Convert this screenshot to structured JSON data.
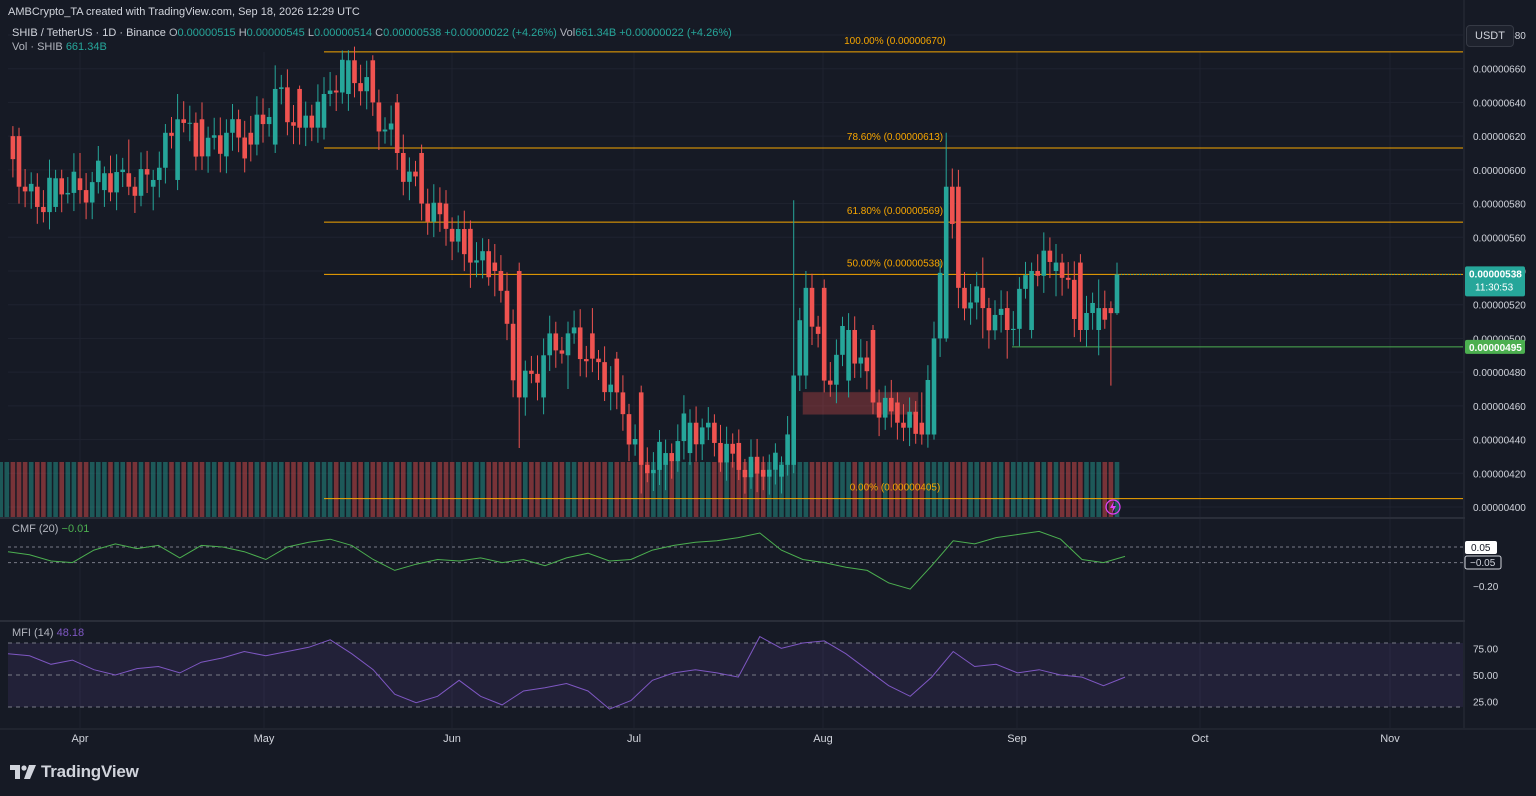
{
  "header": {
    "attribution": "AMBCrypto_TA created with TradingView.com, Sep 18, 2026 12:29 UTC",
    "symbol": "SHIB / TetherUS · 1D · Binance",
    "o_label": "O",
    "o_value": "0.00000515",
    "h_label": "H",
    "h_value": "0.00000545",
    "l_label": "L",
    "l_value": "0.00000514",
    "c_label": "C",
    "c_value": "0.00000538",
    "change": "+0.00000022 (+4.26%)",
    "vol_label": "Vol",
    "vol_value": "661.34B",
    "change2": "+0.00000022 (+4.26%)",
    "vol_shib_label": "Vol · SHIB",
    "vol_shib_value": "661.34B"
  },
  "currency_button": "USDT",
  "colors": {
    "background": "#161a25",
    "up": "#26a69a",
    "down": "#ef5350",
    "fib": "#f7a600",
    "cmf": "#4caf50",
    "mfi": "#7e57c2",
    "support": "#4caf50"
  },
  "price_axis": {
    "ticks": [
      "0.00000680",
      "0.00000660",
      "0.00000640",
      "0.00000620",
      "0.00000600",
      "0.00000580",
      "0.00000560",
      "0.00000540",
      "0.00000520",
      "0.00000500",
      "0.00000480",
      "0.00000460",
      "0.00000440",
      "0.00000420",
      "0.00000400"
    ],
    "current_price": "0.00000538",
    "countdown": "11:30:53",
    "support_label": "0.00000495"
  },
  "fib_levels": [
    {
      "label": "100.00% (0.00000670)",
      "value": 6.7e-06
    },
    {
      "label": "78.60% (0.00000613)",
      "value": 6.13e-06
    },
    {
      "label": "61.80% (0.00000569)",
      "value": 5.69e-06
    },
    {
      "label": "50.00% (0.00000538)",
      "value": 5.38e-06
    },
    {
      "label": "0.00% (0.00000405)",
      "value": 4.05e-06
    }
  ],
  "time_axis": [
    "Apr",
    "May",
    "Jun",
    "Jul",
    "Aug",
    "Sep",
    "Oct",
    "Nov"
  ],
  "cmf": {
    "label": "CMF (20)",
    "value": "−0.01",
    "ticks": [
      "0.05",
      "−0.05",
      "−0.20"
    ]
  },
  "mfi": {
    "label": "MFI (14)",
    "value": "48.18",
    "ticks": [
      "75.00",
      "50.00",
      "25.00"
    ]
  },
  "logo_text": "TradingView",
  "chart_data": {
    "type": "candlestick",
    "title": "SHIB / TetherUS · 1D · Binance",
    "x_range": [
      "Mar 18",
      "Sep 18"
    ],
    "y_range": [
      3.9e-06,
      6.88e-06
    ],
    "note_unit": "values in USDT",
    "series": [
      {
        "name": "SHIB / TetherUS",
        "points": [
          {
            "date": "Mar 18",
            "open": 6e-06,
            "high": 6.1e-06,
            "low": 5.68e-06,
            "close": 5.75e-06
          },
          {
            "date": "Mar 20",
            "open": 5.75e-06,
            "high": 6.28e-06,
            "low": 5.7e-06,
            "close": 6.2e-06
          },
          {
            "date": "Mar 22",
            "open": 6.2e-06,
            "high": 6.25e-06,
            "low": 5.8e-06,
            "close": 5.9e-06
          },
          {
            "date": "Mar 25",
            "open": 5.9e-06,
            "high": 5.98e-06,
            "low": 5.68e-06,
            "close": 5.78e-06
          },
          {
            "date": "Mar 28",
            "open": 5.78e-06,
            "high": 6e-06,
            "low": 5.75e-06,
            "close": 5.95e-06
          },
          {
            "date": "Apr 01",
            "open": 5.95e-06,
            "high": 6.1e-06,
            "low": 5.8e-06,
            "close": 5.88e-06
          },
          {
            "date": "Apr 05",
            "open": 5.88e-06,
            "high": 6.02e-06,
            "low": 5.78e-06,
            "close": 5.98e-06
          },
          {
            "date": "Apr 09",
            "open": 5.98e-06,
            "high": 6.18e-06,
            "low": 5.85e-06,
            "close": 5.9e-06
          },
          {
            "date": "Apr 13",
            "open": 5.9e-06,
            "high": 6e-06,
            "low": 5.76e-06,
            "close": 5.94e-06
          },
          {
            "date": "Apr 17",
            "open": 5.94e-06,
            "high": 6.45e-06,
            "low": 5.88e-06,
            "close": 6.3e-06
          },
          {
            "date": "Apr 21",
            "open": 6.3e-06,
            "high": 6.4e-06,
            "low": 6e-06,
            "close": 6.08e-06
          },
          {
            "date": "Apr 25",
            "open": 6.08e-06,
            "high": 6.3e-06,
            "low": 5.98e-06,
            "close": 6.22e-06
          },
          {
            "date": "Apr 29",
            "open": 6.22e-06,
            "high": 6.32e-06,
            "low": 6.05e-06,
            "close": 6.15e-06
          },
          {
            "date": "May 03",
            "open": 6.15e-06,
            "high": 6.62e-06,
            "low": 6.1e-06,
            "close": 6.48e-06
          },
          {
            "date": "May 07",
            "open": 6.48e-06,
            "high": 6.5e-06,
            "low": 6.15e-06,
            "close": 6.25e-06
          },
          {
            "date": "May 11",
            "open": 6.25e-06,
            "high": 6.55e-06,
            "low": 6.18e-06,
            "close": 6.45e-06
          },
          {
            "date": "May 15",
            "open": 6.45e-06,
            "high": 6.71e-06,
            "low": 6.35e-06,
            "close": 6.65e-06
          },
          {
            "date": "May 19",
            "open": 6.65e-06,
            "high": 6.68e-06,
            "low": 6.32e-06,
            "close": 6.4e-06
          },
          {
            "date": "May 23",
            "open": 6.4e-06,
            "high": 6.45e-06,
            "low": 6e-06,
            "close": 6.1e-06
          },
          {
            "date": "May 27",
            "open": 6.1e-06,
            "high": 6.15e-06,
            "low": 5.7e-06,
            "close": 5.8e-06
          },
          {
            "date": "May 31",
            "open": 5.8e-06,
            "high": 5.88e-06,
            "low": 5.55e-06,
            "close": 5.65e-06
          },
          {
            "date": "Jun 04",
            "open": 5.65e-06,
            "high": 5.7e-06,
            "low": 5.3e-06,
            "close": 5.45e-06
          },
          {
            "date": "Jun 08",
            "open": 5.45e-06,
            "high": 5.56e-06,
            "low": 5.25e-06,
            "close": 5.4e-06
          },
          {
            "date": "Jun 12",
            "open": 5.4e-06,
            "high": 5.45e-06,
            "low": 4.35e-06,
            "close": 4.65e-06
          },
          {
            "date": "Jun 16",
            "open": 4.65e-06,
            "high": 5e-06,
            "low": 4.55e-06,
            "close": 4.9e-06
          },
          {
            "date": "Jun 20",
            "open": 4.9e-06,
            "high": 5.1e-06,
            "low": 4.7e-06,
            "close": 5.03e-06
          },
          {
            "date": "Jun 24",
            "open": 5.03e-06,
            "high": 5.18e-06,
            "low": 4.8e-06,
            "close": 4.88e-06
          },
          {
            "date": "Jun 28",
            "open": 4.88e-06,
            "high": 4.92e-06,
            "low": 4.58e-06,
            "close": 4.68e-06
          },
          {
            "date": "Jul 02",
            "open": 4.68e-06,
            "high": 4.72e-06,
            "low": 4.08e-06,
            "close": 4.25e-06
          },
          {
            "date": "Jul 06",
            "open": 4.25e-06,
            "high": 4.4e-06,
            "low": 4.1e-06,
            "close": 4.32e-06
          },
          {
            "date": "Jul 10",
            "open": 4.32e-06,
            "high": 4.58e-06,
            "low": 4.25e-06,
            "close": 4.5e-06
          },
          {
            "date": "Jul 14",
            "open": 4.5e-06,
            "high": 4.55e-06,
            "low": 4.3e-06,
            "close": 4.38e-06
          },
          {
            "date": "Jul 18",
            "open": 4.38e-06,
            "high": 4.46e-06,
            "low": 4.16e-06,
            "close": 4.22e-06
          },
          {
            "date": "Jul 22",
            "open": 4.22e-06,
            "high": 4.3e-06,
            "low": 4.1e-06,
            "close": 4.18e-06
          },
          {
            "date": "Jul 25",
            "open": 4.18e-06,
            "high": 4.3e-06,
            "low": 4.08e-06,
            "close": 4.25e-06
          },
          {
            "date": "Jul 27",
            "open": 4.25e-06,
            "high": 5.82e-06,
            "low": 4.2e-06,
            "close": 4.78e-06
          },
          {
            "date": "Jul 29",
            "open": 4.78e-06,
            "high": 5.4e-06,
            "low": 4.7e-06,
            "close": 5.3e-06
          },
          {
            "date": "Aug 01",
            "open": 5.3e-06,
            "high": 5.35e-06,
            "low": 4.68e-06,
            "close": 4.75e-06
          },
          {
            "date": "Aug 05",
            "open": 4.75e-06,
            "high": 5.15e-06,
            "low": 4.65e-06,
            "close": 5.05e-06
          },
          {
            "date": "Aug 09",
            "open": 5.05e-06,
            "high": 5.08e-06,
            "low": 4.55e-06,
            "close": 4.62e-06
          },
          {
            "date": "Aug 13",
            "open": 4.62e-06,
            "high": 4.68e-06,
            "low": 4.4e-06,
            "close": 4.5e-06
          },
          {
            "date": "Aug 17",
            "open": 4.5e-06,
            "high": 4.68e-06,
            "low": 4.37e-06,
            "close": 4.43e-06
          },
          {
            "date": "Aug 19",
            "open": 4.43e-06,
            "high": 5.1e-06,
            "low": 4.4e-06,
            "close": 5e-06
          },
          {
            "date": "Aug 21",
            "open": 5e-06,
            "high": 6.22e-06,
            "low": 4.98e-06,
            "close": 5.9e-06
          },
          {
            "date": "Aug 23",
            "open": 5.9e-06,
            "high": 6e-06,
            "low": 5.18e-06,
            "close": 5.3e-06
          },
          {
            "date": "Aug 27",
            "open": 5.3e-06,
            "high": 5.48e-06,
            "low": 5e-06,
            "close": 5.18e-06
          },
          {
            "date": "Aug 31",
            "open": 5.18e-06,
            "high": 5.28e-06,
            "low": 4.88e-06,
            "close": 5.05e-06
          },
          {
            "date": "Sep 04",
            "open": 5.05e-06,
            "high": 5.45e-06,
            "low": 5e-06,
            "close": 5.4e-06
          },
          {
            "date": "Sep 08",
            "open": 5.4e-06,
            "high": 5.56e-06,
            "low": 5.25e-06,
            "close": 5.45e-06
          },
          {
            "date": "Sep 12",
            "open": 5.45e-06,
            "high": 5.5e-06,
            "low": 4.98e-06,
            "close": 5.05e-06
          },
          {
            "date": "Sep 15",
            "open": 5.05e-06,
            "high": 5.35e-06,
            "low": 4.9e-06,
            "close": 5.18e-06
          },
          {
            "date": "Sep 17",
            "open": 5.18e-06,
            "high": 5.22e-06,
            "low": 4.72e-06,
            "close": 5.15e-06
          },
          {
            "date": "Sep 18",
            "open": 5.15e-06,
            "high": 5.45e-06,
            "low": 5.14e-06,
            "close": 5.38e-06
          }
        ]
      }
    ],
    "cmf_series": [
      0.02,
      0.0,
      -0.04,
      -0.05,
      0.03,
      0.07,
      0.04,
      0.06,
      -0.02,
      0.06,
      0.05,
      0.02,
      -0.03,
      0.05,
      0.08,
      0.1,
      0.06,
      -0.03,
      -0.1,
      -0.06,
      -0.03,
      -0.04,
      -0.02,
      -0.05,
      -0.03,
      -0.07,
      -0.02,
      0.01,
      -0.04,
      -0.03,
      0.03,
      0.06,
      0.08,
      0.09,
      0.11,
      0.14,
      0.03,
      -0.03,
      -0.05,
      -0.08,
      -0.1,
      -0.18,
      -0.22,
      -0.07,
      0.09,
      0.07,
      0.11,
      0.13,
      0.15,
      0.1,
      -0.03,
      -0.05,
      -0.01
    ],
    "mfi_series": [
      70,
      68,
      60,
      64,
      55,
      50,
      56,
      58,
      52,
      62,
      66,
      72,
      68,
      72,
      76,
      83,
      70,
      55,
      32,
      24,
      30,
      45,
      30,
      22,
      35,
      38,
      42,
      35,
      18,
      26,
      45,
      52,
      55,
      52,
      48,
      86,
      75,
      80,
      82,
      70,
      55,
      40,
      30,
      48,
      72,
      58,
      60,
      52,
      55,
      50,
      48,
      40,
      48
    ],
    "fib_levels": [
      6.7e-06,
      6.13e-06,
      5.69e-06,
      5.38e-06,
      4.05e-06
    ],
    "support_level": 4.95e-06,
    "order_block": [
      4.55e-06,
      4.68e-06
    ]
  }
}
